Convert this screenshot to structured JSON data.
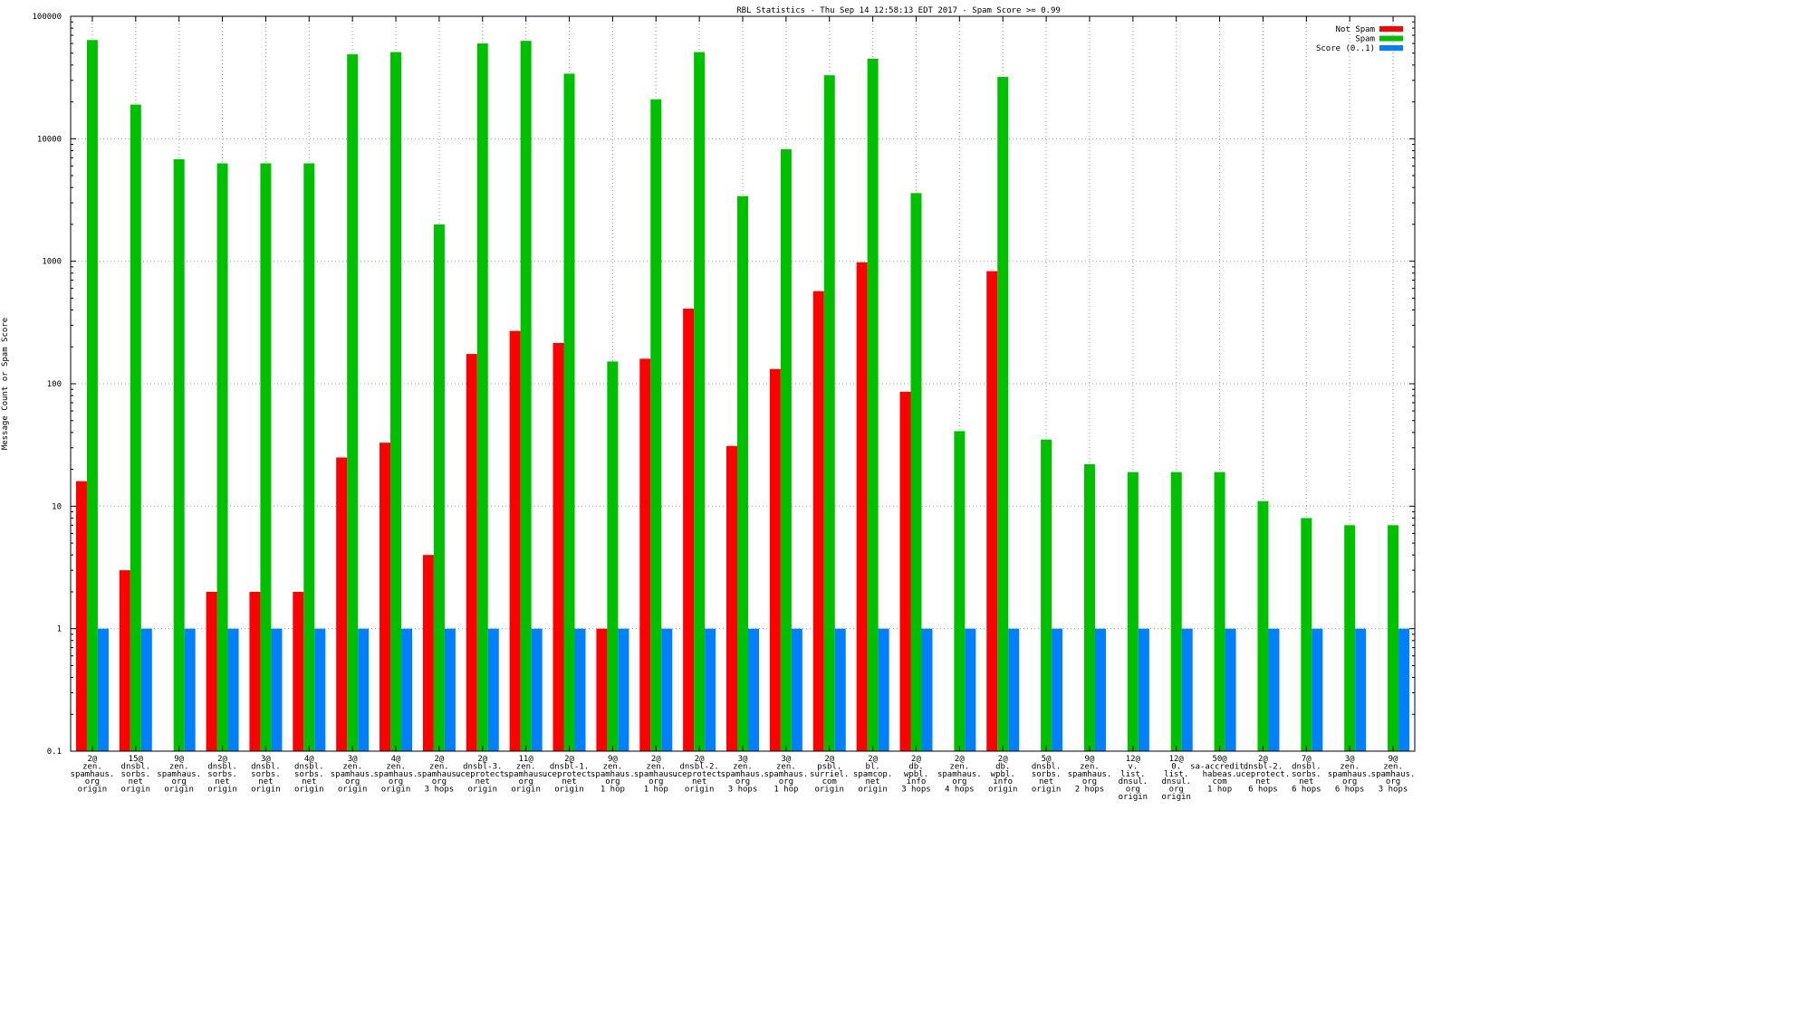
{
  "colors": {
    "not_spam": "#ff0000",
    "spam": "#00c000",
    "score": "#0080ff"
  },
  "chart_data": {
    "type": "bar",
    "title": "RBL Statistics - Thu Sep 14 12:58:13 EDT 2017 - Spam Score >= 0.99",
    "xlabel": "",
    "ylabel": "Message Count or Spam Score",
    "y_scale": "log",
    "ylim": [
      0.1,
      100000
    ],
    "yticks": [
      "0.1",
      "1",
      "10",
      "100",
      "1000",
      "10000",
      "100000"
    ],
    "grid": true,
    "legend_position": "top-right",
    "categories": [
      [
        "2@",
        "zen.",
        "spamhaus.",
        "org",
        "origin"
      ],
      [
        "15@",
        "dnsbl.",
        "sorbs.",
        "net",
        "origin"
      ],
      [
        "9@",
        "zen.",
        "spamhaus.",
        "org",
        "origin"
      ],
      [
        "2@",
        "dnsbl.",
        "sorbs.",
        "net",
        "origin"
      ],
      [
        "3@",
        "dnsbl.",
        "sorbs.",
        "net",
        "origin"
      ],
      [
        "4@",
        "dnsbl.",
        "sorbs.",
        "net",
        "origin"
      ],
      [
        "3@",
        "zen.",
        "spamhaus.",
        "org",
        "origin"
      ],
      [
        "4@",
        "zen.",
        "spamhaus.",
        "org",
        "origin"
      ],
      [
        "2@",
        "zen.",
        "spamhaus.",
        "org",
        "3 hops"
      ],
      [
        "2@",
        "dnsbl-3.",
        "uceprotect.",
        "net",
        "origin"
      ],
      [
        "11@",
        "zen.",
        "spamhaus.",
        "org",
        "origin"
      ],
      [
        "2@",
        "dnsbl-1.",
        "uceprotect.",
        "net",
        "origin"
      ],
      [
        "9@",
        "zen.",
        "spamhaus.",
        "org",
        "1 hop"
      ],
      [
        "2@",
        "zen.",
        "spamhaus.",
        "org",
        "1 hop"
      ],
      [
        "2@",
        "dnsbl-2.",
        "uceprotect.",
        "net",
        "origin"
      ],
      [
        "3@",
        "zen.",
        "spamhaus.",
        "org",
        "3 hops"
      ],
      [
        "3@",
        "zen.",
        "spamhaus.",
        "org",
        "1 hop"
      ],
      [
        "2@",
        "psbl.",
        "surriel.",
        "com",
        "origin"
      ],
      [
        "2@",
        "bl.",
        "spamcop.",
        "net",
        "origin"
      ],
      [
        "2@",
        "db.",
        "wpbl.",
        "info",
        "3 hops"
      ],
      [
        "2@",
        "zen.",
        "spamhaus.",
        "org",
        "4 hops"
      ],
      [
        "2@",
        "db.",
        "wpbl.",
        "info",
        "origin"
      ],
      [
        "5@",
        "dnsbl.",
        "sorbs.",
        "net",
        "origin"
      ],
      [
        "9@",
        "zen.",
        "spamhaus.",
        "org",
        "2 hops"
      ],
      [
        "12@",
        "v.",
        "list.",
        "dnsul.",
        "org",
        "origin"
      ],
      [
        "12@",
        "0.",
        "list.",
        "dnsul.",
        "org",
        "origin"
      ],
      [
        "50@",
        "sa-accredit.",
        "habeas.",
        "com",
        "1 hop"
      ],
      [
        "2@",
        "dnsbl-2.",
        "uceprotect.",
        "net",
        "6 hops"
      ],
      [
        "7@",
        "dnsbl.",
        "sorbs.",
        "net",
        "6 hops"
      ],
      [
        "3@",
        "zen.",
        "spamhaus.",
        "org",
        "6 hops"
      ],
      [
        "9@",
        "zen.",
        "spamhaus.",
        "org",
        "3 hops"
      ]
    ],
    "series": [
      {
        "name": "Not Spam",
        "values": [
          16,
          3,
          0,
          2,
          2,
          2,
          25,
          33,
          4,
          175,
          270,
          215,
          1,
          160,
          410,
          31,
          132,
          570,
          980,
          86,
          0,
          830,
          0,
          0,
          0,
          0,
          0,
          0,
          0,
          0,
          0
        ]
      },
      {
        "name": "Spam",
        "values": [
          64000,
          19000,
          6800,
          6300,
          6300,
          6300,
          49000,
          51000,
          2000,
          60000,
          63000,
          34000,
          152,
          21000,
          51000,
          3400,
          8200,
          33000,
          45000,
          3600,
          41,
          32000,
          35,
          22,
          19,
          19,
          19,
          11,
          8,
          7,
          7
        ]
      },
      {
        "name": "Score (0..1)",
        "values": [
          1,
          1,
          1,
          1,
          1,
          1,
          1,
          1,
          1,
          1,
          1,
          1,
          1,
          1,
          1,
          1,
          1,
          1,
          1,
          1,
          1,
          1,
          1,
          1,
          1,
          1,
          1,
          1,
          1,
          1,
          1
        ]
      }
    ]
  }
}
